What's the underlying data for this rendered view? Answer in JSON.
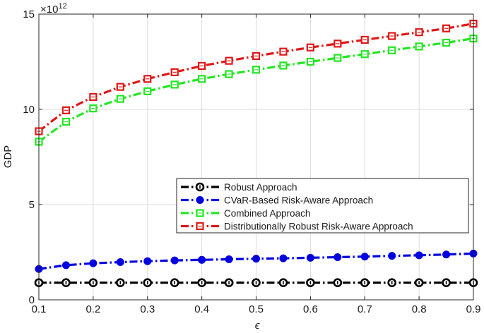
{
  "chart_data": {
    "type": "line",
    "xlabel": "ϵ",
    "ylabel": "GDP",
    "exponent_label": "×10",
    "exponent_power": "12",
    "xlim": [
      0.1,
      0.9
    ],
    "ylim": [
      0,
      15
    ],
    "grid": true,
    "legend_position": "center-right",
    "x": [
      0.1,
      0.15,
      0.2,
      0.25,
      0.3,
      0.35,
      0.4,
      0.45,
      0.5,
      0.55,
      0.6,
      0.65,
      0.7,
      0.75,
      0.8,
      0.85,
      0.9
    ],
    "x_ticks": [
      0.1,
      0.2,
      0.3,
      0.4,
      0.5,
      0.6,
      0.7,
      0.8,
      0.9
    ],
    "x_tick_labels": [
      "0.1",
      "0.2",
      "0.3",
      "0.4",
      "0.5",
      "0.6",
      "0.7",
      "0.8",
      "0.9"
    ],
    "y_ticks": [
      0,
      5,
      10,
      15
    ],
    "y_tick_labels": [
      "0",
      "5",
      "10",
      "15"
    ],
    "series": [
      {
        "name": "Robust Approach",
        "color": "#000000",
        "marker": "ring",
        "values": [
          0.9,
          0.9,
          0.9,
          0.9,
          0.9,
          0.9,
          0.9,
          0.9,
          0.9,
          0.9,
          0.9,
          0.9,
          0.9,
          0.9,
          0.9,
          0.9,
          0.9
        ]
      },
      {
        "name": "CVaR-Based Risk-Aware Approach",
        "color": "#0000e0",
        "marker": "dot",
        "values": [
          1.62,
          1.82,
          1.92,
          1.98,
          2.03,
          2.07,
          2.1,
          2.13,
          2.16,
          2.18,
          2.21,
          2.24,
          2.27,
          2.31,
          2.34,
          2.38,
          2.43
        ]
      },
      {
        "name": "Combined Approach",
        "color": "#22e622",
        "marker": "square",
        "values": [
          8.3,
          9.35,
          10.05,
          10.55,
          10.95,
          11.3,
          11.6,
          11.85,
          12.08,
          12.3,
          12.5,
          12.7,
          12.9,
          13.1,
          13.3,
          13.5,
          13.72
        ]
      },
      {
        "name": "Distributionally Robust Risk-Aware Approach",
        "color": "#e01818",
        "marker": "square",
        "values": [
          8.85,
          9.95,
          10.65,
          11.18,
          11.6,
          11.95,
          12.28,
          12.55,
          12.8,
          13.03,
          13.25,
          13.45,
          13.65,
          13.85,
          14.05,
          14.25,
          14.5
        ]
      }
    ]
  }
}
